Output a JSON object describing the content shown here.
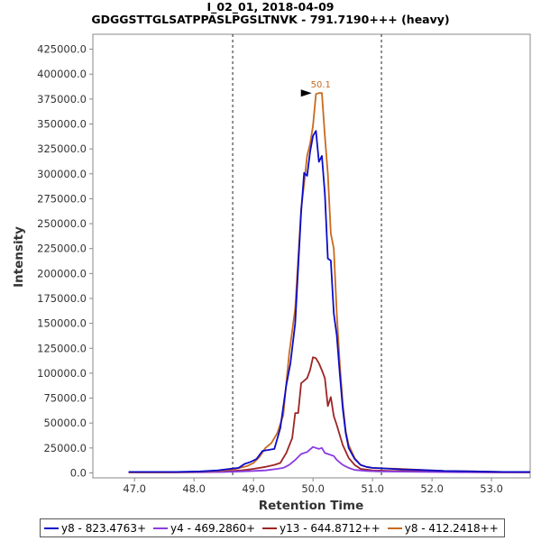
{
  "chart_data": {
    "type": "line",
    "title": "I_02_01, 2018-04-09",
    "subtitle": "GDGGSTTGLSATPPASLPGSLTNVK - 791.7190+++ (heavy)",
    "xlabel": "Retention Time",
    "ylabel": "Intensity",
    "xlim": [
      46.3,
      53.65
    ],
    "ylim": [
      -5000,
      440000
    ],
    "x_ticks": [
      "47.0",
      "48.0",
      "49.0",
      "50.0",
      "51.0",
      "52.0",
      "53.0"
    ],
    "y_ticks": [
      "0.0",
      "25000.0",
      "50000.0",
      "75000.0",
      "100000.0",
      "125000.0",
      "150000.0",
      "175000.0",
      "200000.0",
      "225000.0",
      "250000.0",
      "275000.0",
      "300000.0",
      "325000.0",
      "350000.0",
      "375000.0",
      "400000.0",
      "425000.0"
    ],
    "integration_bounds": [
      48.65,
      51.15
    ],
    "peak_annotation": {
      "label": "50.1",
      "x": 50.13,
      "y": 381000,
      "color": "#c96a1c"
    },
    "grid": false,
    "legend_position": "bottom",
    "series": [
      {
        "name": "y8 - 823.4763+",
        "color": "#0c0cc8",
        "points": [
          [
            46.9,
            1000
          ],
          [
            47.3,
            1000
          ],
          [
            47.7,
            1000
          ],
          [
            48.1,
            1500
          ],
          [
            48.4,
            2500
          ],
          [
            48.6,
            4000
          ],
          [
            48.75,
            5000
          ],
          [
            48.85,
            9000
          ],
          [
            48.95,
            11000
          ],
          [
            49.05,
            14000
          ],
          [
            49.15,
            22000
          ],
          [
            49.25,
            23000
          ],
          [
            49.35,
            24000
          ],
          [
            49.45,
            45000
          ],
          [
            49.55,
            88000
          ],
          [
            49.62,
            110000
          ],
          [
            49.7,
            150000
          ],
          [
            49.8,
            262000
          ],
          [
            49.85,
            301000
          ],
          [
            49.9,
            298000
          ],
          [
            49.95,
            322000
          ],
          [
            50.0,
            338000
          ],
          [
            50.05,
            343000
          ],
          [
            50.1,
            312000
          ],
          [
            50.15,
            318000
          ],
          [
            50.2,
            280000
          ],
          [
            50.25,
            215000
          ],
          [
            50.3,
            213000
          ],
          [
            50.35,
            160000
          ],
          [
            50.4,
            138000
          ],
          [
            50.45,
            100000
          ],
          [
            50.5,
            65000
          ],
          [
            50.55,
            40000
          ],
          [
            50.6,
            25000
          ],
          [
            50.7,
            14000
          ],
          [
            50.8,
            8000
          ],
          [
            50.9,
            6000
          ],
          [
            51.0,
            5000
          ],
          [
            51.2,
            4500
          ],
          [
            51.5,
            3500
          ],
          [
            51.8,
            3000
          ],
          [
            52.2,
            2000
          ],
          [
            52.7,
            1500
          ],
          [
            53.2,
            1000
          ],
          [
            53.65,
            1000
          ]
        ]
      },
      {
        "name": "y4 - 469.2860+",
        "color": "#8a3ce0",
        "points": [
          [
            46.9,
            300
          ],
          [
            47.5,
            300
          ],
          [
            48.0,
            500
          ],
          [
            48.5,
            900
          ],
          [
            48.8,
            1500
          ],
          [
            49.0,
            2000
          ],
          [
            49.2,
            2500
          ],
          [
            49.4,
            4000
          ],
          [
            49.5,
            5000
          ],
          [
            49.6,
            8000
          ],
          [
            49.7,
            13000
          ],
          [
            49.8,
            19000
          ],
          [
            49.9,
            21000
          ],
          [
            50.0,
            26000
          ],
          [
            50.05,
            25000
          ],
          [
            50.1,
            24000
          ],
          [
            50.15,
            25000
          ],
          [
            50.2,
            20000
          ],
          [
            50.3,
            18000
          ],
          [
            50.35,
            17000
          ],
          [
            50.4,
            13000
          ],
          [
            50.5,
            8000
          ],
          [
            50.6,
            5000
          ],
          [
            50.7,
            3000
          ],
          [
            50.9,
            2000
          ],
          [
            51.1,
            1500
          ],
          [
            51.5,
            1200
          ],
          [
            52.0,
            900
          ],
          [
            52.5,
            700
          ],
          [
            53.0,
            500
          ],
          [
            53.65,
            400
          ]
        ]
      },
      {
        "name": "y13 - 644.8712++",
        "color": "#9e2424",
        "points": [
          [
            46.9,
            300
          ],
          [
            47.5,
            400
          ],
          [
            48.0,
            800
          ],
          [
            48.5,
            1500
          ],
          [
            48.8,
            2500
          ],
          [
            49.0,
            4000
          ],
          [
            49.2,
            6000
          ],
          [
            49.35,
            8000
          ],
          [
            49.45,
            10000
          ],
          [
            49.55,
            20000
          ],
          [
            49.65,
            35000
          ],
          [
            49.7,
            60000
          ],
          [
            49.75,
            60000
          ],
          [
            49.8,
            90000
          ],
          [
            49.9,
            95000
          ],
          [
            49.95,
            103000
          ],
          [
            50.0,
            116000
          ],
          [
            50.05,
            115000
          ],
          [
            50.1,
            110000
          ],
          [
            50.15,
            103000
          ],
          [
            50.2,
            95000
          ],
          [
            50.25,
            67000
          ],
          [
            50.3,
            76000
          ],
          [
            50.35,
            57000
          ],
          [
            50.4,
            48000
          ],
          [
            50.5,
            28000
          ],
          [
            50.6,
            15000
          ],
          [
            50.7,
            8000
          ],
          [
            50.8,
            4000
          ],
          [
            51.0,
            2500
          ],
          [
            51.3,
            2000
          ],
          [
            51.8,
            1500
          ],
          [
            52.3,
            1000
          ],
          [
            53.0,
            600
          ],
          [
            53.65,
            500
          ]
        ]
      },
      {
        "name": "y8 - 412.2418++",
        "color": "#c96a1c",
        "points": [
          [
            46.9,
            500
          ],
          [
            47.5,
            600
          ],
          [
            48.0,
            1000
          ],
          [
            48.4,
            2000
          ],
          [
            48.7,
            4000
          ],
          [
            48.9,
            7000
          ],
          [
            49.0,
            10000
          ],
          [
            49.1,
            16000
          ],
          [
            49.2,
            25000
          ],
          [
            49.3,
            30000
          ],
          [
            49.4,
            40000
          ],
          [
            49.5,
            58000
          ],
          [
            49.55,
            90000
          ],
          [
            49.6,
            120000
          ],
          [
            49.7,
            165000
          ],
          [
            49.8,
            265000
          ],
          [
            49.85,
            290000
          ],
          [
            49.9,
            318000
          ],
          [
            49.95,
            330000
          ],
          [
            50.0,
            348000
          ],
          [
            50.05,
            380000
          ],
          [
            50.1,
            381000
          ],
          [
            50.15,
            381000
          ],
          [
            50.2,
            338000
          ],
          [
            50.25,
            300000
          ],
          [
            50.3,
            240000
          ],
          [
            50.35,
            225000
          ],
          [
            50.4,
            160000
          ],
          [
            50.45,
            110000
          ],
          [
            50.5,
            70000
          ],
          [
            50.55,
            42000
          ],
          [
            50.6,
            28000
          ],
          [
            50.7,
            15000
          ],
          [
            50.8,
            8000
          ],
          [
            50.9,
            6000
          ],
          [
            51.0,
            5000
          ],
          [
            51.2,
            4500
          ],
          [
            51.5,
            4000
          ],
          [
            51.8,
            3000
          ],
          [
            52.2,
            2000
          ],
          [
            52.7,
            1500
          ],
          [
            53.2,
            1000
          ],
          [
            53.65,
            1000
          ]
        ]
      }
    ]
  }
}
